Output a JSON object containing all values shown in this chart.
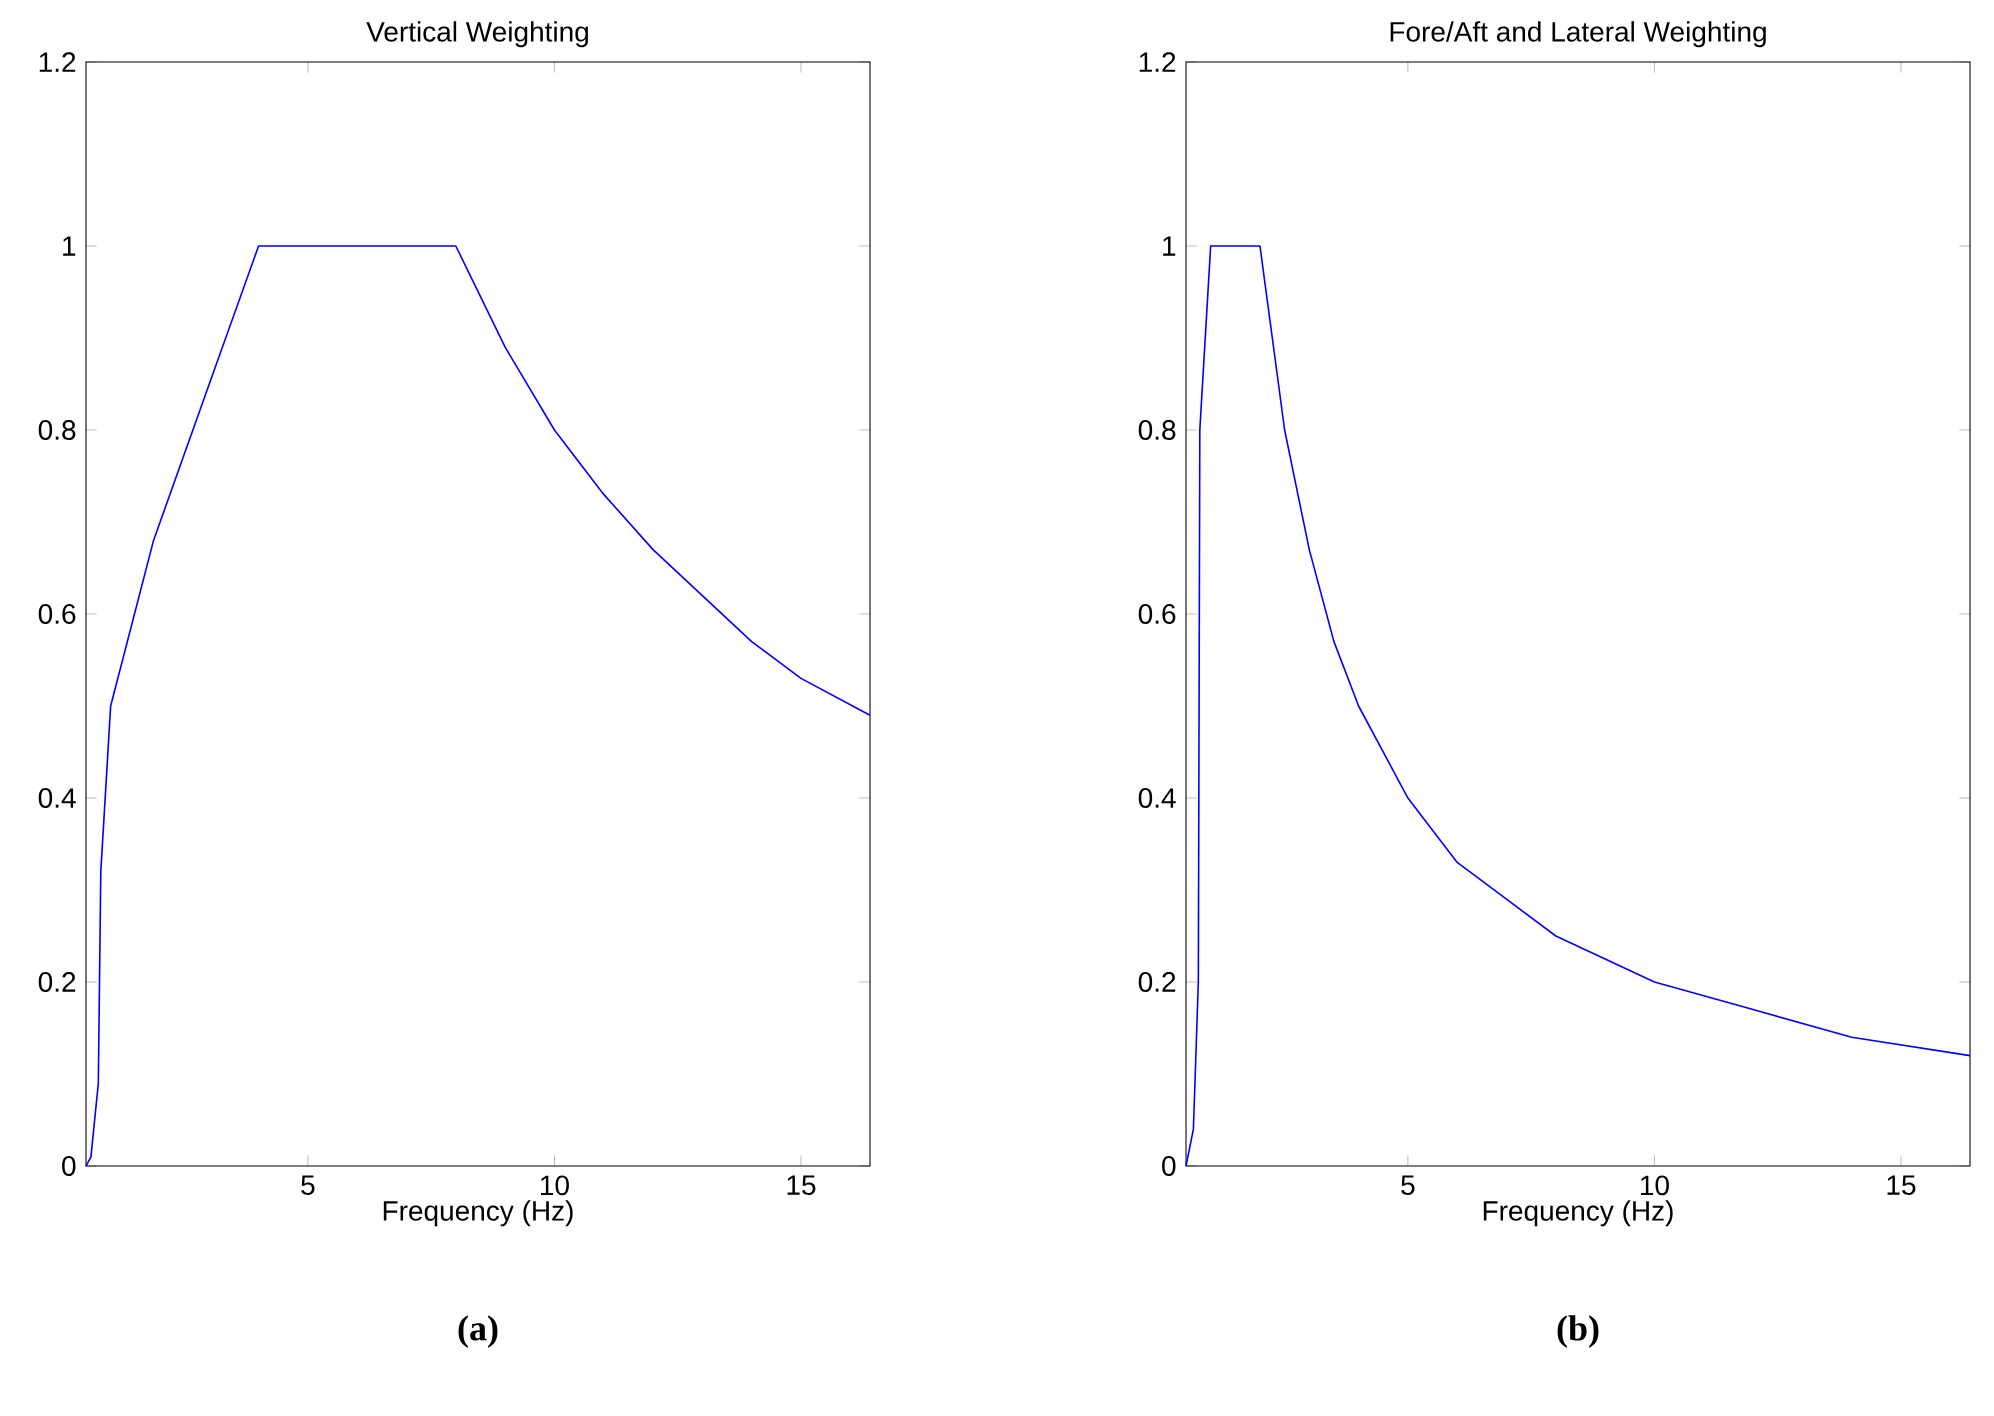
{
  "chart_data": [
    {
      "type": "line",
      "title": "Vertical Weighting",
      "xlabel": "Frequency (Hz)",
      "color": "#0000ff",
      "xlim": [
        0.5,
        16.4
      ],
      "ylim": [
        0,
        1.2
      ],
      "xticks": [
        5,
        10,
        15
      ],
      "yticks": [
        0,
        0.2,
        0.4,
        0.6,
        0.8,
        1,
        1.2
      ],
      "x": [
        0.5,
        0.6,
        0.75,
        0.8,
        1.0,
        1.87,
        3.0,
        4.0,
        8.0,
        9,
        10,
        11,
        12,
        13,
        14,
        15,
        16.4
      ],
      "values": [
        0,
        0.01,
        0.09,
        0.32,
        0.5,
        0.68,
        0.85,
        1.0,
        1.0,
        0.89,
        0.8,
        0.73,
        0.67,
        0.62,
        0.57,
        0.53,
        0.49
      ],
      "annotations": [
        "(a)"
      ]
    },
    {
      "type": "line",
      "title": "Fore/Aft and Lateral Weighting",
      "xlabel": "Frequency (Hz)",
      "color": "#0000ff",
      "xlim": [
        0.5,
        16.4
      ],
      "ylim": [
        0,
        1.2
      ],
      "xticks": [
        5,
        10,
        15
      ],
      "yticks": [
        0,
        0.2,
        0.4,
        0.6,
        0.8,
        1,
        1.2
      ],
      "x": [
        0.5,
        0.65,
        0.75,
        0.78,
        1.0,
        2.0,
        2.5,
        3,
        3.5,
        4,
        5,
        6,
        7,
        8,
        10,
        12,
        14,
        16.4
      ],
      "values": [
        0,
        0.04,
        0.2,
        0.8,
        1.0,
        1.0,
        0.8,
        0.67,
        0.57,
        0.5,
        0.4,
        0.33,
        0.29,
        0.25,
        0.2,
        0.17,
        0.14,
        0.12
      ],
      "annotations": [
        "(b)"
      ]
    }
  ]
}
